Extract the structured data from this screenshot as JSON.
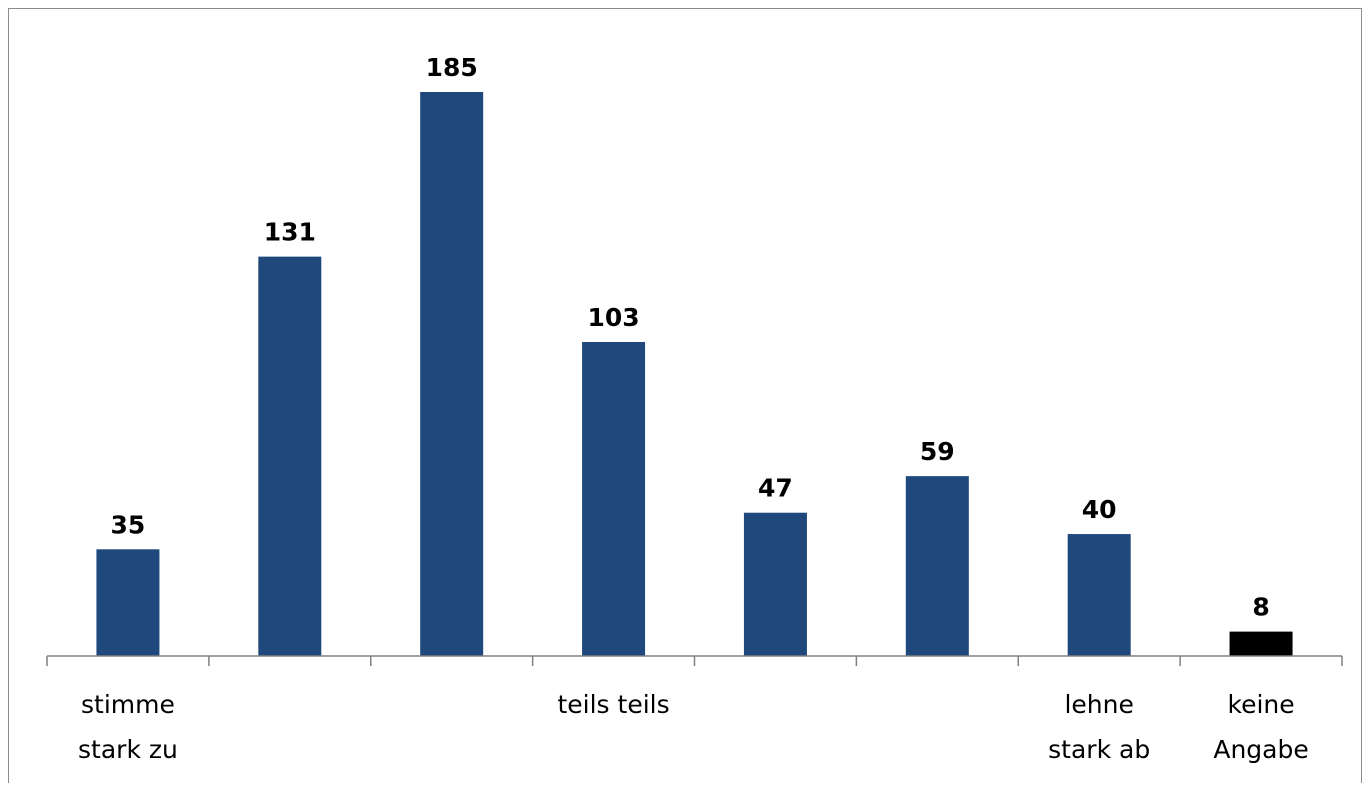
{
  "chart_data": {
    "type": "bar",
    "categories": [
      [
        "stimme",
        "stark zu"
      ],
      [],
      [],
      [
        "teils teils"
      ],
      [],
      [],
      [
        "lehne",
        "stark ab"
      ],
      [
        "keine",
        "Angabe"
      ]
    ],
    "values": [
      35,
      131,
      185,
      103,
      47,
      59,
      40,
      8
    ],
    "bar_colors": [
      "#1f497d",
      "#1f497d",
      "#1f497d",
      "#1f497d",
      "#1f497d",
      "#1f497d",
      "#1f497d",
      "#000000"
    ],
    "data_labels": true,
    "ylim": [
      0,
      200
    ],
    "grid": false,
    "legend": false
  }
}
